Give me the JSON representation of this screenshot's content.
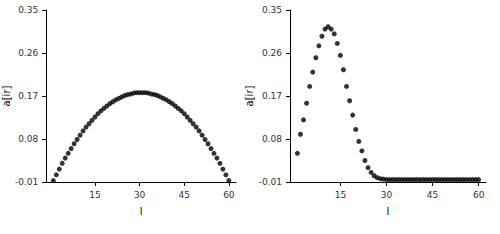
{
  "chart_data": [
    {
      "type": "scatter",
      "xlabel": "l",
      "ylabel": "a[ir]",
      "color": "#000000",
      "marker": "circle",
      "grid": false,
      "x": [
        1,
        2,
        3,
        4,
        5,
        6,
        7,
        8,
        9,
        10,
        11,
        12,
        13,
        14,
        15,
        16,
        17,
        18,
        19,
        20,
        21,
        22,
        23,
        24,
        25,
        26,
        27,
        28,
        29,
        30,
        31,
        32,
        33,
        34,
        35,
        36,
        37,
        38,
        39,
        40,
        41,
        42,
        43,
        44,
        45,
        46,
        47,
        48,
        49,
        50,
        51,
        52,
        53,
        54,
        55,
        56,
        57,
        58,
        59,
        60
      ],
      "values": [
        -0.007,
        0.005,
        0.017,
        0.029,
        0.04,
        0.05,
        0.06,
        0.07,
        0.079,
        0.088,
        0.097,
        0.105,
        0.112,
        0.119,
        0.126,
        0.133,
        0.139,
        0.144,
        0.149,
        0.154,
        0.158,
        0.162,
        0.165,
        0.168,
        0.171,
        0.173,
        0.174,
        0.176,
        0.177,
        0.177,
        0.177,
        0.177,
        0.176,
        0.174,
        0.173,
        0.171,
        0.168,
        0.165,
        0.162,
        0.158,
        0.154,
        0.149,
        0.144,
        0.139,
        0.133,
        0.126,
        0.119,
        0.112,
        0.105,
        0.097,
        0.088,
        0.079,
        0.07,
        0.06,
        0.05,
        0.04,
        0.029,
        0.017,
        0.005,
        -0.007
      ],
      "xlim": [
        -1.4,
        62.4
      ],
      "xticks": [
        15,
        30,
        45,
        60
      ],
      "ylim": [
        -0.01,
        0.35
      ],
      "yticks": [
        -0.01,
        0.08,
        0.17,
        0.26,
        0.35
      ]
    },
    {
      "type": "scatter",
      "xlabel": "l",
      "ylabel": "a[ir]",
      "color": "#000000",
      "marker": "circle",
      "grid": false,
      "x": [
        1,
        2,
        3,
        4,
        5,
        6,
        7,
        8,
        9,
        10,
        11,
        12,
        13,
        14,
        15,
        16,
        17,
        18,
        19,
        20,
        21,
        22,
        23,
        24,
        25,
        26,
        27,
        28,
        29,
        30,
        31,
        32,
        33,
        34,
        35,
        36,
        37,
        38,
        39,
        40,
        41,
        42,
        43,
        44,
        45,
        46,
        47,
        48,
        49,
        50,
        51,
        52,
        53,
        54,
        55,
        56,
        57,
        58,
        59,
        60
      ],
      "values": [
        0.05,
        0.09,
        0.12,
        0.155,
        0.19,
        0.22,
        0.25,
        0.275,
        0.295,
        0.31,
        0.315,
        0.31,
        0.3,
        0.28,
        0.255,
        0.225,
        0.19,
        0.16,
        0.13,
        0.1,
        0.075,
        0.055,
        0.035,
        0.02,
        0.01,
        0.003,
        -0.001,
        -0.003,
        -0.004,
        -0.005,
        -0.005,
        -0.005,
        -0.005,
        -0.005,
        -0.005,
        -0.005,
        -0.005,
        -0.005,
        -0.005,
        -0.005,
        -0.005,
        -0.005,
        -0.005,
        -0.005,
        -0.005,
        -0.005,
        -0.005,
        -0.005,
        -0.005,
        -0.005,
        -0.005,
        -0.005,
        -0.005,
        -0.005,
        -0.005,
        -0.005,
        -0.005,
        -0.005,
        -0.005,
        -0.005
      ],
      "xlim": [
        -1.4,
        62.4
      ],
      "xticks": [
        15,
        30,
        45,
        60
      ],
      "ylim": [
        -0.01,
        0.35
      ],
      "yticks": [
        -0.01,
        0.08,
        0.17,
        0.26,
        0.35
      ]
    }
  ]
}
